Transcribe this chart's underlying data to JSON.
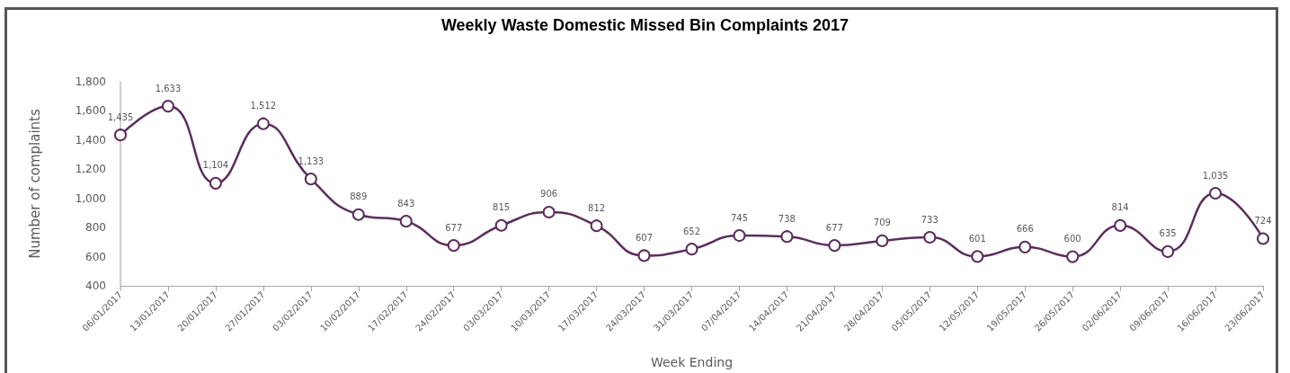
{
  "chart_data": {
    "type": "line",
    "title": "Weekly Waste Domestic Missed Bin Complaints 2017",
    "xlabel": "Week Ending",
    "ylabel": "Number of complaints",
    "categories": [
      "06/01/2017",
      "13/01/2017",
      "20/01/2017",
      "27/01/2017",
      "03/02/2017",
      "10/02/2017",
      "17/02/2017",
      "24/02/2017",
      "03/03/2017",
      "10/03/2017",
      "17/03/2017",
      "24/03/2017",
      "31/03/2017",
      "07/04/2017",
      "14/04/2017",
      "21/04/2017",
      "28/04/2017",
      "05/05/2017",
      "12/05/2017",
      "19/05/2017",
      "26/05/2017",
      "02/06/2017",
      "09/06/2017",
      "16/06/2017",
      "23/06/2017"
    ],
    "series": [
      {
        "color": "#5c2d5e",
        "values": [
          1435,
          1633,
          1104,
          1512,
          1133,
          889,
          843,
          677,
          815,
          906,
          812,
          607,
          652,
          745,
          738,
          677,
          709,
          733,
          601,
          666,
          600,
          814,
          635,
          1035,
          724
        ],
        "value_labels": [
          "1,435",
          "1,633",
          "1,104",
          "1,512",
          "1,133",
          "889",
          "843",
          "677",
          "815",
          "906",
          "812",
          "607",
          "652",
          "745",
          "738",
          "677",
          "709",
          "733",
          "601",
          "666",
          "600",
          "814",
          "635",
          "1,035",
          "724"
        ]
      }
    ],
    "ylim": [
      400,
      1800
    ],
    "yticks": [
      {
        "value": 400,
        "label": "400"
      },
      {
        "value": 600,
        "label": "600"
      },
      {
        "value": 800,
        "label": "800"
      },
      {
        "value": 1000,
        "label": "1,000"
      },
      {
        "value": 1200,
        "label": "1,200"
      },
      {
        "value": 1400,
        "label": "1,400"
      },
      {
        "value": 1600,
        "label": "1,600"
      },
      {
        "value": 1800,
        "label": "1,800"
      }
    ],
    "grid": false,
    "marker": "circle",
    "line_style": "solid"
  }
}
